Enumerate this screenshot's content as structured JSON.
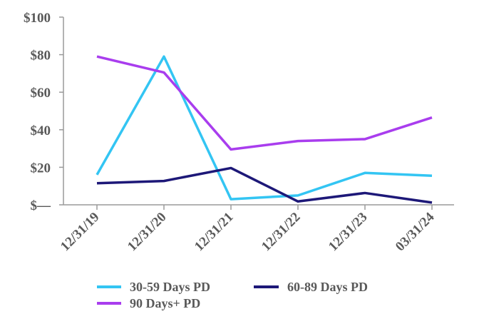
{
  "chart_data": {
    "type": "line",
    "title": "",
    "xlabel": "",
    "ylabel": "",
    "categories": [
      "12/31/19",
      "12/31/20",
      "12/31/21",
      "12/31/22",
      "12/31/23",
      "03/31/24"
    ],
    "y_ticks": [
      {
        "value": 0,
        "label": "$—"
      },
      {
        "value": 20,
        "label": "$20"
      },
      {
        "value": 40,
        "label": "$40"
      },
      {
        "value": 60,
        "label": "$60"
      },
      {
        "value": 80,
        "label": "$80"
      },
      {
        "value": 100,
        "label": "$100"
      }
    ],
    "ylim": [
      0,
      100
    ],
    "grid": false,
    "legend_position": "bottom",
    "series": [
      {
        "name": "30-59 Days PD",
        "color": "#33C5F3",
        "values": [
          16,
          79,
          3,
          5,
          17,
          15.5
        ]
      },
      {
        "name": "60-89 Days PD",
        "color": "#1D1878",
        "values": [
          11.5,
          12.7,
          19.6,
          1.8,
          6.3,
          1.2
        ]
      },
      {
        "name": "90 Days+ PD",
        "color": "#A93DEE",
        "values": [
          79,
          70.5,
          29.5,
          34,
          35,
          46.5
        ]
      }
    ]
  }
}
